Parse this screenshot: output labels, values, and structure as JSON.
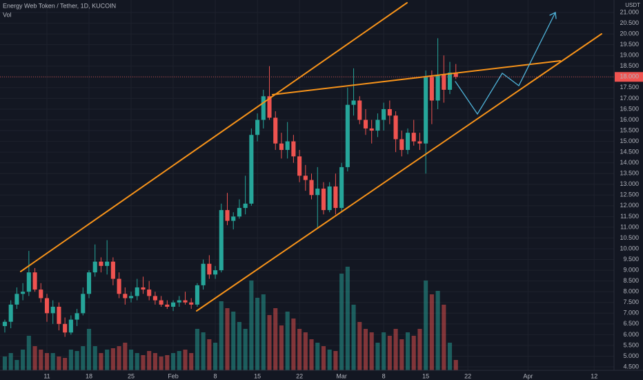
{
  "chart_data": {
    "type": "candlestick",
    "title": "Energy Web Token / Tether, 1D, KUCOIN",
    "volume_label": "Vol",
    "y_label": "USDT",
    "up_color": "#26a69a",
    "down_color": "#ef5350",
    "grid": true,
    "x": [
      0,
      1,
      2,
      3,
      4,
      5,
      6,
      7,
      8,
      9,
      10,
      11,
      12,
      13,
      14,
      15,
      16,
      17,
      18,
      19,
      20,
      21,
      22,
      23,
      24,
      25,
      26,
      27,
      28,
      29,
      30,
      31,
      32,
      33,
      34,
      35,
      36,
      37,
      38,
      39,
      40,
      41,
      42,
      43,
      44,
      45,
      46,
      47,
      48,
      49,
      50,
      51,
      52,
      53,
      54,
      55,
      56,
      57,
      58,
      59,
      60,
      61,
      62,
      63,
      64,
      65,
      66,
      67,
      68,
      69,
      70,
      71,
      72,
      73,
      74,
      75
    ],
    "open": [
      6.4,
      6.6,
      7.4,
      7.9,
      8.0,
      8.9,
      8.1,
      7.7,
      7.0,
      7.3,
      6.5,
      6.1,
      6.7,
      7.0,
      7.9,
      8.9,
      9.4,
      9.2,
      9.4,
      8.6,
      7.9,
      7.7,
      7.8,
      8.2,
      8.1,
      7.8,
      7.6,
      7.4,
      7.3,
      7.5,
      7.6,
      7.5,
      7.4,
      8.3,
      9.3,
      8.8,
      9.0,
      11.8,
      11.3,
      11.5,
      11.9,
      12.1,
      15.3,
      16.0,
      17.1,
      16.1,
      14.9,
      14.6,
      15.0,
      14.3,
      13.4,
      13.2,
      12.5,
      12.8,
      11.8,
      12.9,
      11.9,
      13.8,
      16.7,
      16.9,
      16.0,
      15.6,
      15.5,
      16.0,
      16.5,
      16.2,
      15.1,
      14.6,
      15.4,
      15.0,
      14.9,
      18.0,
      16.9,
      18.1,
      17.4,
      18.2
    ],
    "high": [
      6.7,
      7.6,
      8.2,
      8.4,
      9.9,
      9.1,
      8.4,
      7.9,
      7.6,
      7.5,
      6.8,
      6.9,
      7.2,
      8.2,
      9.0,
      10.2,
      9.6,
      10.4,
      9.6,
      8.9,
      8.2,
      8.0,
      8.6,
      8.7,
      8.5,
      8.0,
      7.8,
      7.6,
      7.6,
      7.8,
      8.0,
      7.7,
      8.4,
      9.5,
      9.7,
      9.2,
      12.1,
      12.6,
      11.7,
      12.3,
      13.4,
      15.6,
      16.3,
      17.4,
      18.5,
      16.4,
      15.4,
      15.9,
      15.3,
      14.6,
      13.9,
      13.5,
      13.8,
      13.1,
      13.1,
      13.5,
      14.0,
      17.5,
      18.4,
      17.1,
      16.5,
      16.0,
      16.3,
      16.8,
      16.9,
      16.4,
      15.5,
      15.6,
      16.0,
      15.4,
      18.3,
      18.3,
      19.8,
      19.0,
      18.7,
      18.6
    ],
    "low": [
      6.1,
      6.3,
      7.2,
      7.6,
      7.8,
      8.0,
      7.5,
      6.6,
      6.5,
      6.2,
      5.9,
      6.0,
      6.4,
      6.9,
      7.7,
      8.7,
      8.9,
      8.8,
      8.3,
      7.7,
      7.4,
      7.5,
      7.6,
      7.9,
      7.6,
      7.4,
      7.3,
      7.2,
      7.1,
      7.3,
      7.4,
      7.2,
      7.3,
      8.1,
      8.6,
      8.6,
      8.9,
      11.1,
      10.9,
      11.4,
      11.6,
      12.0,
      15.0,
      15.6,
      16.0,
      14.6,
      14.2,
      14.2,
      14.0,
      13.1,
      12.7,
      12.3,
      11.0,
      11.6,
      11.7,
      11.6,
      11.7,
      13.6,
      16.2,
      15.8,
      15.3,
      14.9,
      15.2,
      15.5,
      15.8,
      14.5,
      14.3,
      14.4,
      14.8,
      14.6,
      13.5,
      15.8,
      16.5,
      16.8,
      17.2,
      17.9
    ],
    "close": [
      6.6,
      7.4,
      7.9,
      8.0,
      8.9,
      8.1,
      7.7,
      7.0,
      7.3,
      6.5,
      6.1,
      6.7,
      7.0,
      7.9,
      8.9,
      9.4,
      9.2,
      9.4,
      8.6,
      7.9,
      7.7,
      7.8,
      8.2,
      8.1,
      7.8,
      7.6,
      7.4,
      7.3,
      7.5,
      7.6,
      7.5,
      7.4,
      8.3,
      9.3,
      8.8,
      9.0,
      11.8,
      11.3,
      11.5,
      11.9,
      12.1,
      15.3,
      16.0,
      17.1,
      16.1,
      14.9,
      14.6,
      15.0,
      14.3,
      13.4,
      13.2,
      12.5,
      12.8,
      11.8,
      12.9,
      11.9,
      13.8,
      16.7,
      16.9,
      16.0,
      15.6,
      15.5,
      16.0,
      16.5,
      16.2,
      15.1,
      14.6,
      15.4,
      15.0,
      14.9,
      18.0,
      16.9,
      18.1,
      17.4,
      18.2,
      18.0
    ],
    "volume": [
      20,
      25,
      15,
      30,
      50,
      35,
      30,
      25,
      25,
      20,
      18,
      30,
      28,
      35,
      60,
      35,
      25,
      30,
      32,
      35,
      40,
      30,
      25,
      22,
      28,
      25,
      20,
      22,
      25,
      28,
      30,
      25,
      60,
      55,
      45,
      40,
      100,
      90,
      85,
      70,
      60,
      130,
      105,
      110,
      80,
      90,
      65,
      85,
      75,
      60,
      55,
      45,
      40,
      35,
      30,
      28,
      140,
      150,
      95,
      70,
      60,
      55,
      40,
      55,
      50,
      60,
      45,
      55,
      50,
      60,
      130,
      110,
      115,
      95,
      40,
      15
    ],
    "xlim": [
      -0.8,
      101.3
    ],
    "xticks": [
      {
        "value": 7,
        "label": "11"
      },
      {
        "value": 14,
        "label": "18"
      },
      {
        "value": 21,
        "label": "25"
      },
      {
        "value": 28,
        "label": "Feb"
      },
      {
        "value": 35,
        "label": "8"
      },
      {
        "value": 42,
        "label": "15"
      },
      {
        "value": 49,
        "label": "22"
      },
      {
        "value": 56,
        "label": "Mar"
      },
      {
        "value": 63,
        "label": "8"
      },
      {
        "value": 70,
        "label": "15"
      },
      {
        "value": 77,
        "label": "22"
      },
      {
        "value": 87,
        "label": "Apr"
      },
      {
        "value": 98,
        "label": "12"
      }
    ],
    "ylim": [
      4.34,
      21.58
    ],
    "yticks": [
      {
        "value": 4.5,
        "label": "4.500"
      },
      {
        "value": 5,
        "label": "5.000"
      },
      {
        "value": 5.5,
        "label": "5.500"
      },
      {
        "value": 6,
        "label": "6.000"
      },
      {
        "value": 6.5,
        "label": "6.500"
      },
      {
        "value": 7,
        "label": "7.000"
      },
      {
        "value": 7.5,
        "label": "7.500"
      },
      {
        "value": 8,
        "label": "8.000"
      },
      {
        "value": 8.5,
        "label": "8.500"
      },
      {
        "value": 9,
        "label": "9.000"
      },
      {
        "value": 9.5,
        "label": "9.500"
      },
      {
        "value": 10,
        "label": "10.000"
      },
      {
        "value": 10.5,
        "label": "10.500"
      },
      {
        "value": 11,
        "label": "11.000"
      },
      {
        "value": 11.5,
        "label": "11.500"
      },
      {
        "value": 12,
        "label": "12.000"
      },
      {
        "value": 12.5,
        "label": "12.500"
      },
      {
        "value": 13,
        "label": "13.000"
      },
      {
        "value": 13.5,
        "label": "13.500"
      },
      {
        "value": 14,
        "label": "14.000"
      },
      {
        "value": 14.5,
        "label": "14.500"
      },
      {
        "value": 15,
        "label": "15.000"
      },
      {
        "value": 15.5,
        "label": "15.500"
      },
      {
        "value": 16,
        "label": "16.000"
      },
      {
        "value": 16.5,
        "label": "16.500"
      },
      {
        "value": 17,
        "label": "17.000"
      },
      {
        "value": 17.5,
        "label": "17.500"
      },
      {
        "value": 18,
        "label": "18.000"
      },
      {
        "value": 18.5,
        "label": "18.500"
      },
      {
        "value": 19,
        "label": "19.000"
      },
      {
        "value": 19.5,
        "label": "19.500"
      },
      {
        "value": 20,
        "label": "20.000"
      },
      {
        "value": 20.5,
        "label": "20.500"
      },
      {
        "value": 21,
        "label": "21.000"
      }
    ]
  }
}
